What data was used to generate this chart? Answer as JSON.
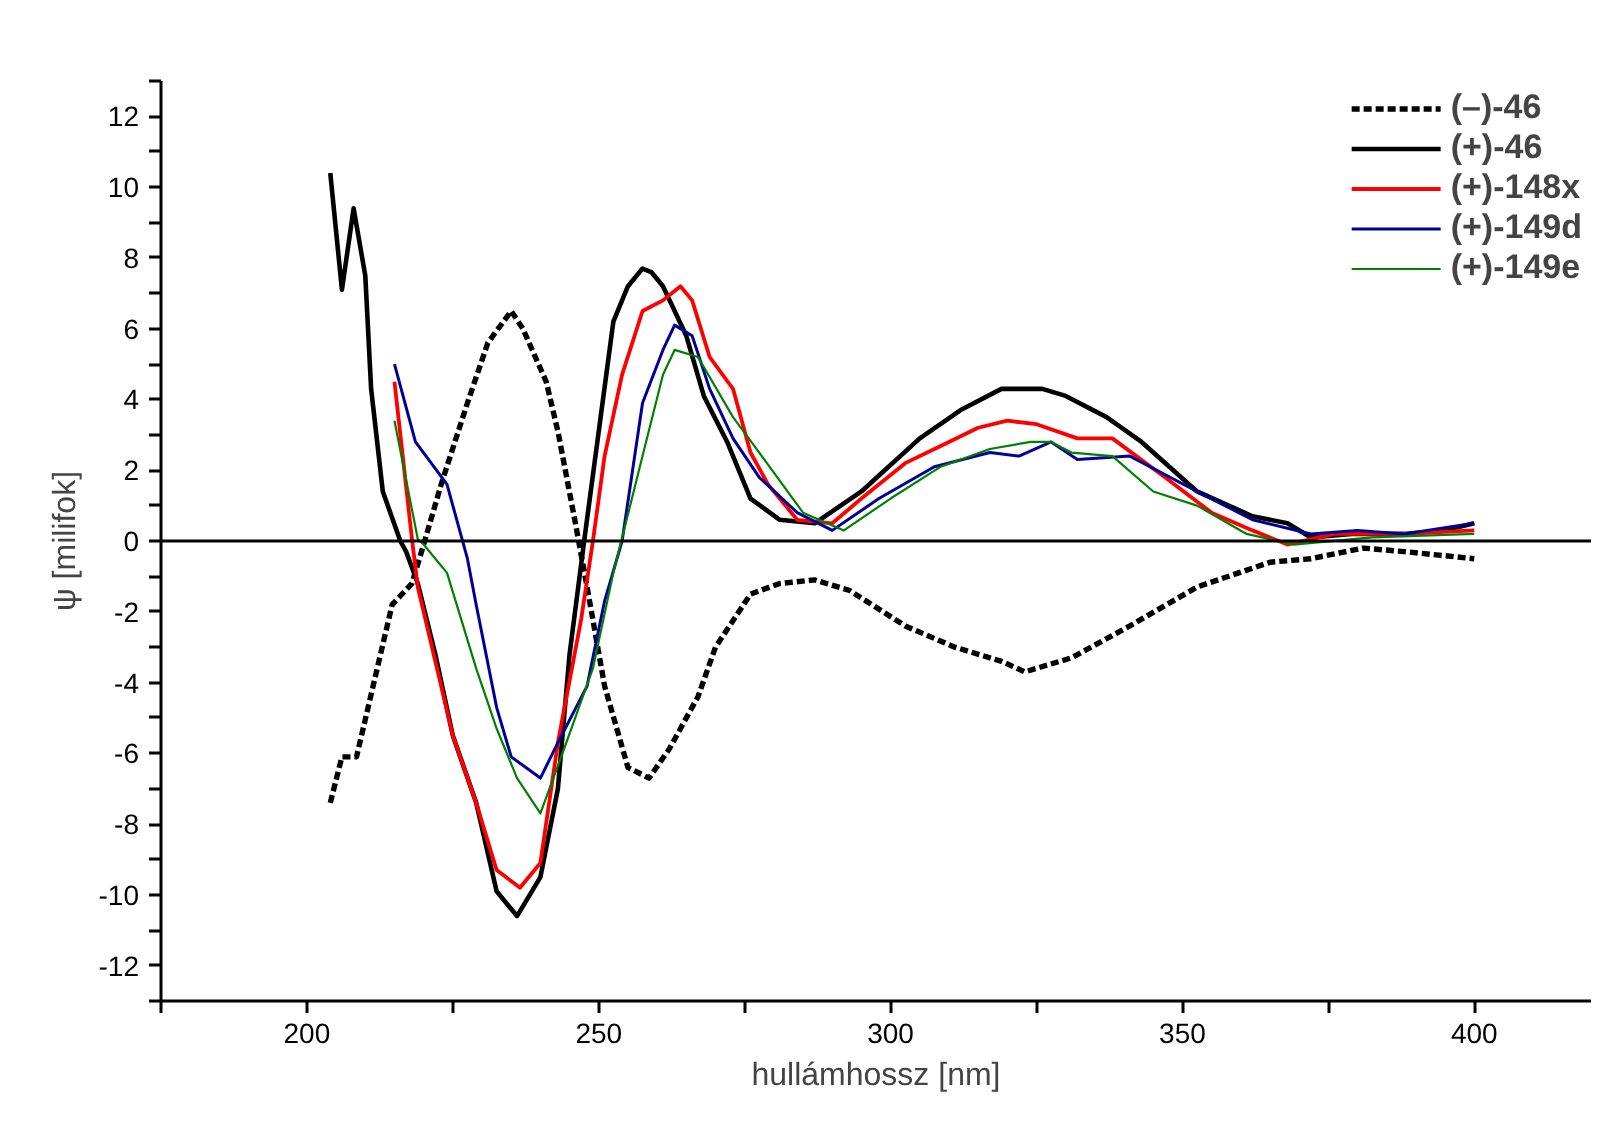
{
  "chart_data": {
    "type": "line",
    "xlabel": "hullámhossz [nm]",
    "ylabel": "ψ [milifok]",
    "xlim": [
      175,
      420
    ],
    "ylim": [
      -13,
      13
    ],
    "xticks": [
      {
        "value": 175,
        "label": null
      },
      200,
      {
        "value": 225,
        "label": null
      },
      250,
      {
        "value": 275,
        "label": null
      },
      300,
      {
        "value": 325,
        "label": null
      },
      350,
      {
        "value": 375,
        "label": null
      },
      400
    ],
    "yticks": [
      {
        "value": -13,
        "label": null
      },
      -12,
      {
        "value": -11,
        "label": null
      },
      -10,
      {
        "value": -9,
        "label": null
      },
      -8,
      {
        "value": -7,
        "label": null
      },
      -6,
      {
        "value": -5,
        "label": null
      },
      -4,
      {
        "value": -3,
        "label": null
      },
      -2,
      {
        "value": -1,
        "label": null
      },
      0,
      {
        "value": 1,
        "label": null
      },
      2,
      {
        "value": 3,
        "label": null
      },
      4,
      {
        "value": 5,
        "label": null
      },
      6,
      {
        "value": 7,
        "label": null
      },
      8,
      {
        "value": 9,
        "label": null
      },
      10,
      {
        "value": 11,
        "label": null
      },
      12,
      {
        "value": 13,
        "label": null
      }
    ],
    "grid": false,
    "legend": "top right",
    "marker": "none",
    "ref_lines": [
      {
        "axis": "y",
        "value": 0,
        "label": null,
        "color": "#000000"
      }
    ],
    "series": [
      {
        "name": "(–)-46",
        "color": "#000000",
        "line_style": "dashed",
        "x": [
          204,
          206,
          208.5,
          214.6,
          218,
          220,
          223,
          227.5,
          231,
          235,
          237,
          241,
          243,
          246,
          248,
          251,
          255,
          258.6,
          262,
          267,
          270,
          276,
          281,
          287,
          293,
          302.5,
          311,
          319,
          323,
          331,
          341,
          352.5,
          365,
          372,
          381,
          388,
          400
        ],
        "values": [
          -7.4,
          -6.1,
          -6.1,
          -1.8,
          -1.2,
          -0.1,
          1.6,
          3.9,
          5.6,
          6.5,
          6.0,
          4.5,
          3.1,
          0.5,
          -1.3,
          -4.1,
          -6.4,
          -6.7,
          -5.9,
          -4.4,
          -3.0,
          -1.5,
          -1.2,
          -1.1,
          -1.4,
          -2.4,
          -3.0,
          -3.4,
          -3.7,
          -3.3,
          -2.4,
          -1.3,
          -0.6,
          -0.5,
          -0.2,
          -0.3,
          -0.5
        ]
      },
      {
        "name": "(+)-46",
        "color": "#000000",
        "line_style": "solid",
        "x": [
          204,
          206,
          208,
          210,
          211,
          213,
          216,
          217,
          219,
          222,
          225,
          229,
          232.5,
          236,
          240,
          243,
          245,
          247.5,
          250,
          252.5,
          255,
          257.5,
          259,
          261,
          265,
          268,
          272,
          276,
          281,
          287,
          295,
          305,
          312,
          319,
          326,
          330,
          337,
          343,
          352.5,
          362,
          368,
          372,
          379,
          388,
          395,
          400
        ],
        "values": [
          10.4,
          7.1,
          9.4,
          7.5,
          4.3,
          1.4,
          0,
          -0.3,
          -1.2,
          -3.2,
          -5.5,
          -7.4,
          -9.9,
          -10.6,
          -9.5,
          -7.0,
          -3.2,
          0,
          3.1,
          6.2,
          7.2,
          7.7,
          7.6,
          7.2,
          5.8,
          4.1,
          2.8,
          1.2,
          0.6,
          0.5,
          1.4,
          2.9,
          3.7,
          4.3,
          4.3,
          4.1,
          3.5,
          2.8,
          1.4,
          0.7,
          0.5,
          0.1,
          0.2,
          0.2,
          0.3,
          0.5
        ]
      },
      {
        "name": "(+)-148x",
        "color": "#ff0000",
        "line_style": "solid",
        "x": [
          215,
          218,
          219,
          222,
          225,
          229,
          232.5,
          236.5,
          240,
          243,
          247,
          249,
          251,
          254,
          257.5,
          261,
          264,
          266,
          269,
          273,
          276,
          279,
          284,
          290,
          295,
          302.5,
          310,
          315,
          320,
          325,
          332,
          338,
          347,
          355,
          362,
          368,
          376,
          388,
          400
        ],
        "values": [
          4.5,
          0.05,
          -1.3,
          -3.4,
          -5.5,
          -7.4,
          -9.3,
          -9.8,
          -9.1,
          -5.7,
          -2.2,
          0,
          2.4,
          4.7,
          6.5,
          6.8,
          7.2,
          6.8,
          5.2,
          4.3,
          2.5,
          1.6,
          0.6,
          0.5,
          1.2,
          2.2,
          2.8,
          3.2,
          3.4,
          3.3,
          2.9,
          2.9,
          1.8,
          0.8,
          0.3,
          -0.1,
          0.2,
          0.2,
          0.3
        ]
      },
      {
        "name": "(+)-149d",
        "color": "#000099",
        "line_style": "solid",
        "x": [
          215,
          218.6,
          224,
          227.5,
          229,
          232.5,
          235,
          240,
          243,
          248,
          251,
          254,
          257.5,
          261,
          263,
          266,
          269,
          273,
          277.5,
          284,
          290,
          298,
          307.5,
          317,
          322,
          327.5,
          332,
          341,
          352.5,
          362,
          372,
          380,
          388,
          400
        ],
        "values": [
          5.0,
          2.8,
          1.6,
          -0.5,
          -1.8,
          -4.7,
          -6.1,
          -6.7,
          -5.7,
          -4.1,
          -1.7,
          0,
          3.9,
          5.4,
          6.1,
          5.8,
          4.3,
          2.9,
          1.8,
          0.8,
          0.3,
          1.2,
          2.1,
          2.5,
          2.4,
          2.8,
          2.3,
          2.4,
          1.4,
          0.6,
          0.2,
          0.3,
          0.2,
          0.5
        ]
      },
      {
        "name": "(+)-149e",
        "color": "#008000",
        "line_style": "solid",
        "x": [
          215,
          219,
          220,
          224,
          229,
          232.5,
          236,
          240,
          244,
          249,
          252.5,
          257.5,
          261,
          263,
          267,
          273,
          277.5,
          285,
          292,
          300,
          308.6,
          317,
          324,
          327.5,
          331,
          338,
          345,
          352.5,
          361,
          369,
          382.5,
          400
        ],
        "values": [
          3.4,
          0.05,
          -0.1,
          -0.9,
          -3.6,
          -5.3,
          -6.7,
          -7.7,
          -5.9,
          -3.6,
          -0.9,
          2.4,
          4.7,
          5.4,
          5.2,
          3.5,
          2.5,
          0.8,
          0.3,
          1.2,
          2.1,
          2.6,
          2.8,
          2.8,
          2.5,
          2.4,
          1.4,
          1.0,
          0.2,
          -0.1,
          0.1,
          0.2
        ]
      }
    ]
  }
}
